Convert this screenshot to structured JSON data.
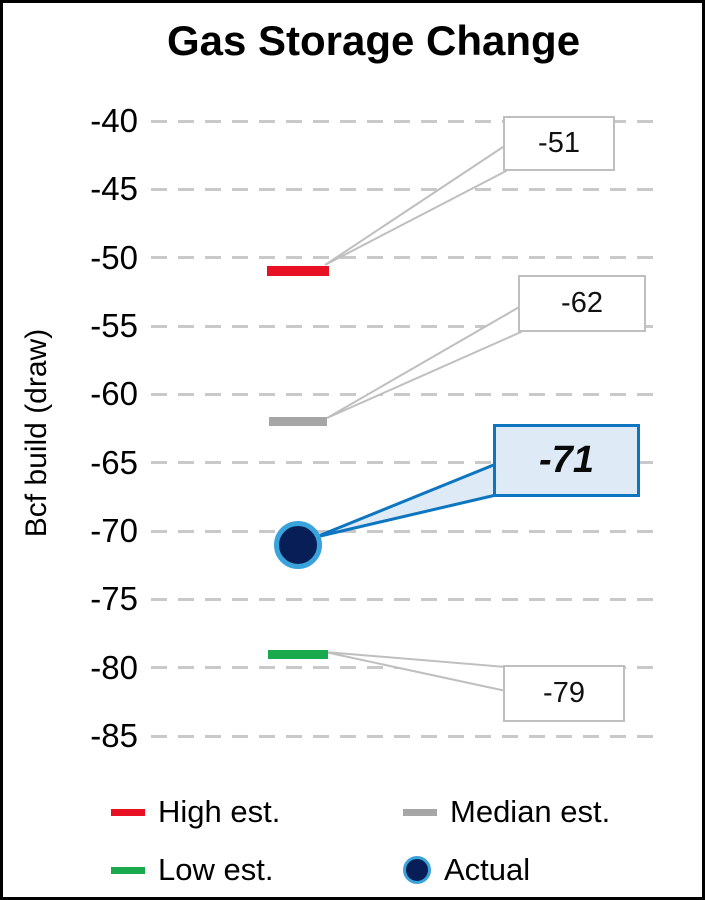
{
  "title": "Gas Storage Change",
  "colors": {
    "high": "#e81123",
    "median": "#a6a6a6",
    "low": "#1aa94c",
    "actual_fill": "#071f56",
    "actual_outline": "#39a3dc",
    "callout_border": "#bfbfbf",
    "callout_fill": "#ffffff",
    "actual_callout_border": "#0e76c0",
    "actual_callout_fill": "#deebf7",
    "gridline": "#c9c9c9",
    "frame_border": "#000000"
  },
  "chart_data": {
    "type": "scatter",
    "title": "Gas Storage Change",
    "xlabel": "",
    "ylabel": "Bcf build (draw)",
    "ylim": [
      -85,
      -40
    ],
    "yticks": [
      "-40",
      "-45",
      "-50",
      "-55",
      "-60",
      "-65",
      "-70",
      "-75",
      "-80",
      "-85"
    ],
    "grid": "dashed-horizontal",
    "legend_position": "bottom",
    "series": [
      {
        "name": "High est.",
        "marker": "dash",
        "color_key": "high",
        "values": [
          -51
        ]
      },
      {
        "name": "Median est.",
        "marker": "dash",
        "color_key": "median",
        "values": [
          -62
        ]
      },
      {
        "name": "Low est.",
        "marker": "dash",
        "color_key": "low",
        "values": [
          -79
        ]
      },
      {
        "name": "Actual",
        "marker": "circle",
        "color_key": "actual_fill",
        "values": [
          -71
        ]
      }
    ],
    "annotations": [
      {
        "text": "-51",
        "series": "High est.",
        "value": -51,
        "style": "plain"
      },
      {
        "text": "-62",
        "series": "Median est.",
        "value": -62,
        "style": "plain"
      },
      {
        "text": "-71",
        "series": "Actual",
        "value": -71,
        "style": "emphasis"
      },
      {
        "text": "-79",
        "series": "Low est.",
        "value": -79,
        "style": "plain"
      }
    ]
  }
}
